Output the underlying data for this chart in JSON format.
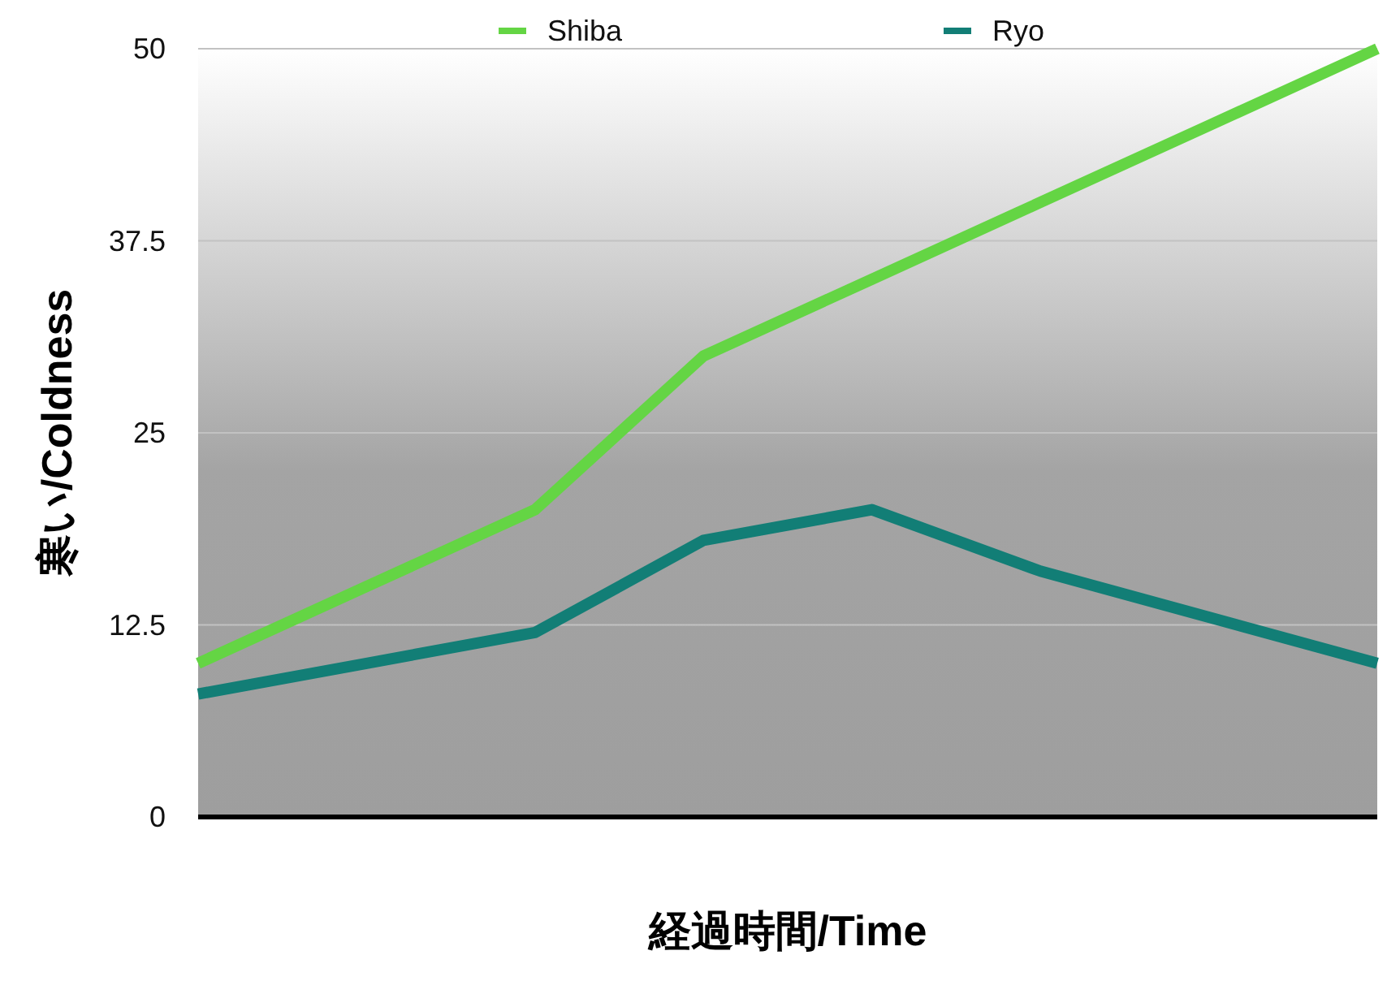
{
  "chart_data": {
    "type": "line",
    "xlabel": "経過時間/Time",
    "ylabel": "寒い/Coldness",
    "categories": [
      null,
      null,
      null,
      null,
      null,
      null,
      null,
      null
    ],
    "series": [
      {
        "name": "Shiba",
        "color": "#64d544",
        "values": [
          10,
          15,
          20,
          30,
          35,
          40,
          45,
          50
        ]
      },
      {
        "name": "Ryo",
        "color": "#127e76",
        "values": [
          8,
          10,
          12,
          18,
          20,
          16,
          13,
          10
        ]
      }
    ],
    "ylim": [
      0,
      50
    ],
    "yticks": [
      0,
      12.5,
      25,
      37.5,
      50
    ],
    "grid": "y",
    "legend": "top",
    "marker": "none",
    "line_style": "solid",
    "tick_labels": "y"
  }
}
